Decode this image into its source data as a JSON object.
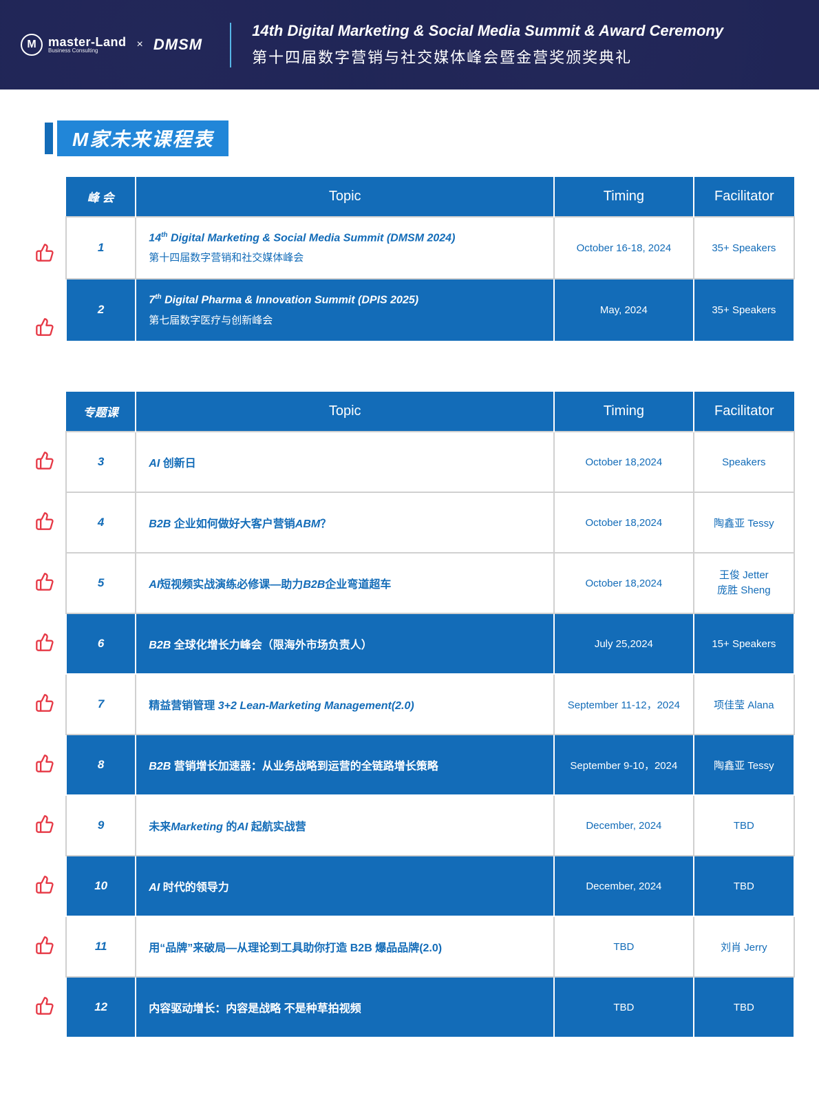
{
  "header": {
    "logo_ml_main": "master-Land",
    "logo_ml_sub": "Business Consulting",
    "logo_x": "×",
    "logo_dmsm": "DMSM",
    "title_en": "14th Digital Marketing & Social Media Summit & Award Ceremony",
    "title_zh": "第十四届数字营销与社交媒体峰会暨金营奖颁奖典礼"
  },
  "section_title": "M家未来课程表",
  "colors": {
    "brand_blue": "#136cb8",
    "accent_blue": "#2186d8",
    "header_bg": "#2a2f5e",
    "divider_blue": "#56b5e6",
    "border_gray": "#d0d0d0",
    "thumb_red": "#e63946"
  },
  "table1": {
    "headers": {
      "c1": "峰 会",
      "c2": "Topic",
      "c3": "Timing",
      "c4": "Facilitator"
    },
    "rows": [
      {
        "num": "1",
        "topic_prefix": "14",
        "topic_sup": "th",
        "topic_rest": " Digital Marketing & Social Media Summit (DMSM 2024)",
        "topic_sub": "第十四届数字营销和社交媒体峰会",
        "timing": "October 16-18, 2024",
        "fac": "35+ Speakers",
        "blue": false
      },
      {
        "num": "2",
        "topic_prefix": "7",
        "topic_sup": "th",
        "topic_rest": " Digital Pharma & Innovation Summit (DPIS 2025)",
        "topic_sub": "第七届数字医疗与创新峰会",
        "timing": "May, 2024",
        "fac": "35+ Speakers",
        "blue": true
      }
    ]
  },
  "table2": {
    "headers": {
      "c1": "专题课",
      "c2": "Topic",
      "c3": "Timing",
      "c4": "Facilitator"
    },
    "rows": [
      {
        "num": "3",
        "topic_html": "<span class='bold-it'>AI</span> 创新日",
        "timing": "October 18,2024",
        "fac": "Speakers"
      },
      {
        "num": "4",
        "topic_html": "<span class='bold-it'>B2B</span> 企业如何做好大客户营销<span class='bold-it'>ABM</span>？",
        "timing": "October 18,2024",
        "fac": "陶鑫亚  Tessy"
      },
      {
        "num": "5",
        "topic_html": "<span class='bold-it'>AI</span>短视频实战演练必修课—助力<span class='bold-it'>B2B</span>企业弯道超车",
        "timing": "October 18,2024",
        "fac_multi": [
          "王俊  Jetter",
          "庞胜  Sheng"
        ]
      },
      {
        "num": "6",
        "topic_html": "<span class='bold-it'>B2B</span> 全球化增长力峰会（限海外市场负责人）",
        "timing": "July 25,2024",
        "fac": "15+ Speakers",
        "blue": true
      },
      {
        "num": "7",
        "topic_html": "精益营销管理 <span class='bold-it'>3+2 Lean-Marketing Management(2.0)</span>",
        "timing": "September 11-12，2024",
        "fac": "项佳莹  Alana"
      },
      {
        "num": "8",
        "topic_html": "<span class='bold-it'>B2B</span> 营销增长加速器：从业务战略到运营的全链路增长策略",
        "timing": "September 9-10，2024",
        "fac": "陶鑫亚 Tessy",
        "blue": true
      },
      {
        "num": "9",
        "topic_html": "未来<span class='bold-it'>Marketing</span> 的<span class='bold-it'>AI</span> 起航实战营",
        "timing": "December, 2024",
        "fac": "TBD"
      },
      {
        "num": "10",
        "topic_html": "<span class='bold-it'>AI</span> 时代的领导力",
        "timing": "December, 2024",
        "fac": "TBD",
        "blue": true
      },
      {
        "num": "11",
        "topic_html": "用“品牌”来破局—从理论到工具助你打造 B2B 爆品品牌(2.0)",
        "timing": "TBD",
        "fac": "刘肖  Jerry"
      },
      {
        "num": "12",
        "topic_html": "内容驱动增长：内容是战略 不是种草拍视频",
        "timing": "TBD",
        "fac": "TBD",
        "blue": true
      }
    ]
  }
}
